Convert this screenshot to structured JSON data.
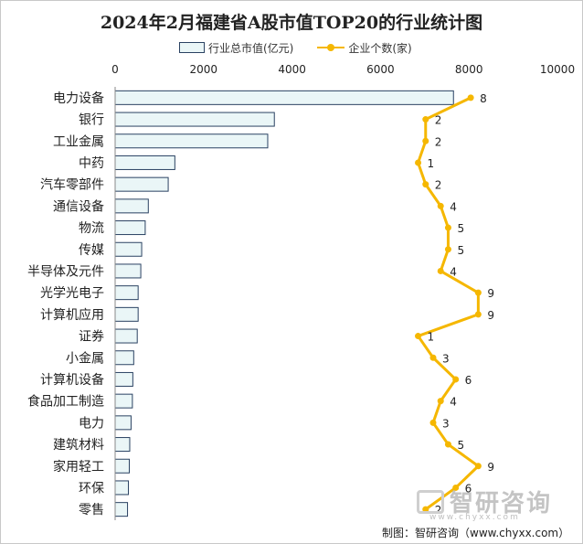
{
  "chart_data": {
    "type": "bar",
    "orientation": "horizontal",
    "title": "2024年2月福建省A股市值TOP20的行业统计图",
    "categories": [
      "电力设备",
      "银行",
      "工业金属",
      "中药",
      "汽车零部件",
      "通信设备",
      "物流",
      "传媒",
      "半导体及元件",
      "光学光电子",
      "计算机应用",
      "证券",
      "小金属",
      "计算机设备",
      "食品加工制造",
      "电力",
      "建筑材料",
      "家用轻工",
      "环保",
      "零售"
    ],
    "x_ticks": [
      "0",
      "2000",
      "4000",
      "6000",
      "8000",
      "10000"
    ],
    "xlim": [
      0,
      10000
    ],
    "grid": false,
    "legend_position": "top",
    "series": [
      {
        "name": "行业总市值(亿元)",
        "type": "bar",
        "color": "#eaf6f7",
        "edge_color": "#2a4262",
        "values": [
          7650,
          3600,
          3450,
          1350,
          1200,
          750,
          680,
          600,
          580,
          520,
          520,
          500,
          420,
          400,
          390,
          360,
          330,
          320,
          300,
          280
        ]
      },
      {
        "name": "企业个数(家)",
        "type": "line",
        "color": "#f5b700",
        "values": [
          8,
          2,
          2,
          1,
          2,
          4,
          5,
          5,
          4,
          9,
          9,
          1,
          3,
          6,
          4,
          3,
          5,
          9,
          6,
          2
        ],
        "labels": [
          "8",
          "2",
          "2",
          "1",
          "2",
          "4",
          "5",
          "5",
          "4",
          "9",
          "9",
          "1",
          "3",
          "6",
          "4",
          "3",
          "5",
          "9",
          "6",
          "2"
        ]
      }
    ]
  },
  "watermark": {
    "name": "智研咨询",
    "url": "www.chyxx.com"
  },
  "source": "制图：智研咨询（www.chyxx.com）"
}
